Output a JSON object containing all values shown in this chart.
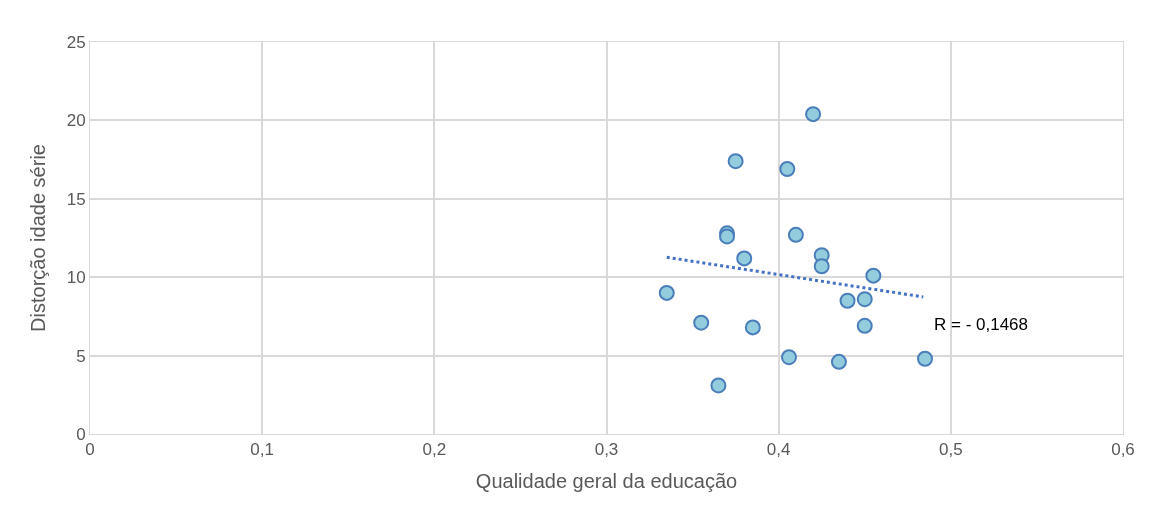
{
  "chart_data": {
    "type": "scatter",
    "xlabel": "Qualidade geral da educação",
    "ylabel": "Distorção idade série",
    "series": [
      {
        "color": "#93cddd",
        "marker": "circle",
        "x": [
          0.335,
          0.355,
          0.385,
          0.365,
          0.406,
          0.435,
          0.44,
          0.45,
          0.45,
          0.485,
          0.42,
          0.375,
          0.405,
          0.37,
          0.37,
          0.41,
          0.38,
          0.425,
          0.425,
          0.455
        ],
        "values": [
          9.0,
          7.1,
          6.8,
          3.1,
          4.9,
          4.6,
          8.5,
          8.6,
          6.9,
          4.8,
          20.4,
          17.4,
          16.9,
          12.8,
          12.6,
          12.7,
          11.2,
          11.4,
          10.7,
          10.1
        ]
      },
      {
        "type": "line",
        "color": "#4472c4",
        "line_style": "dotted",
        "marker": "none",
        "x": [
          0.335,
          0.484
        ],
        "values": [
          11.27,
          8.74
        ]
      }
    ],
    "xlim": [
      0,
      0.6
    ],
    "xticks": [
      {
        "value": 0,
        "label": "0"
      },
      {
        "value": 0.1,
        "label": "0,1"
      },
      {
        "value": 0.2,
        "label": "0,2"
      },
      {
        "value": 0.3,
        "label": "0,3"
      },
      {
        "value": 0.4,
        "label": "0,4"
      },
      {
        "value": 0.5,
        "label": "0,5"
      },
      {
        "value": 0.6,
        "label": "0,6"
      }
    ],
    "ylim": [
      0,
      25
    ],
    "yticks": [
      0,
      5,
      10,
      15,
      20,
      25
    ],
    "grid": true,
    "annotations": [
      "R = - 0,1468"
    ]
  }
}
